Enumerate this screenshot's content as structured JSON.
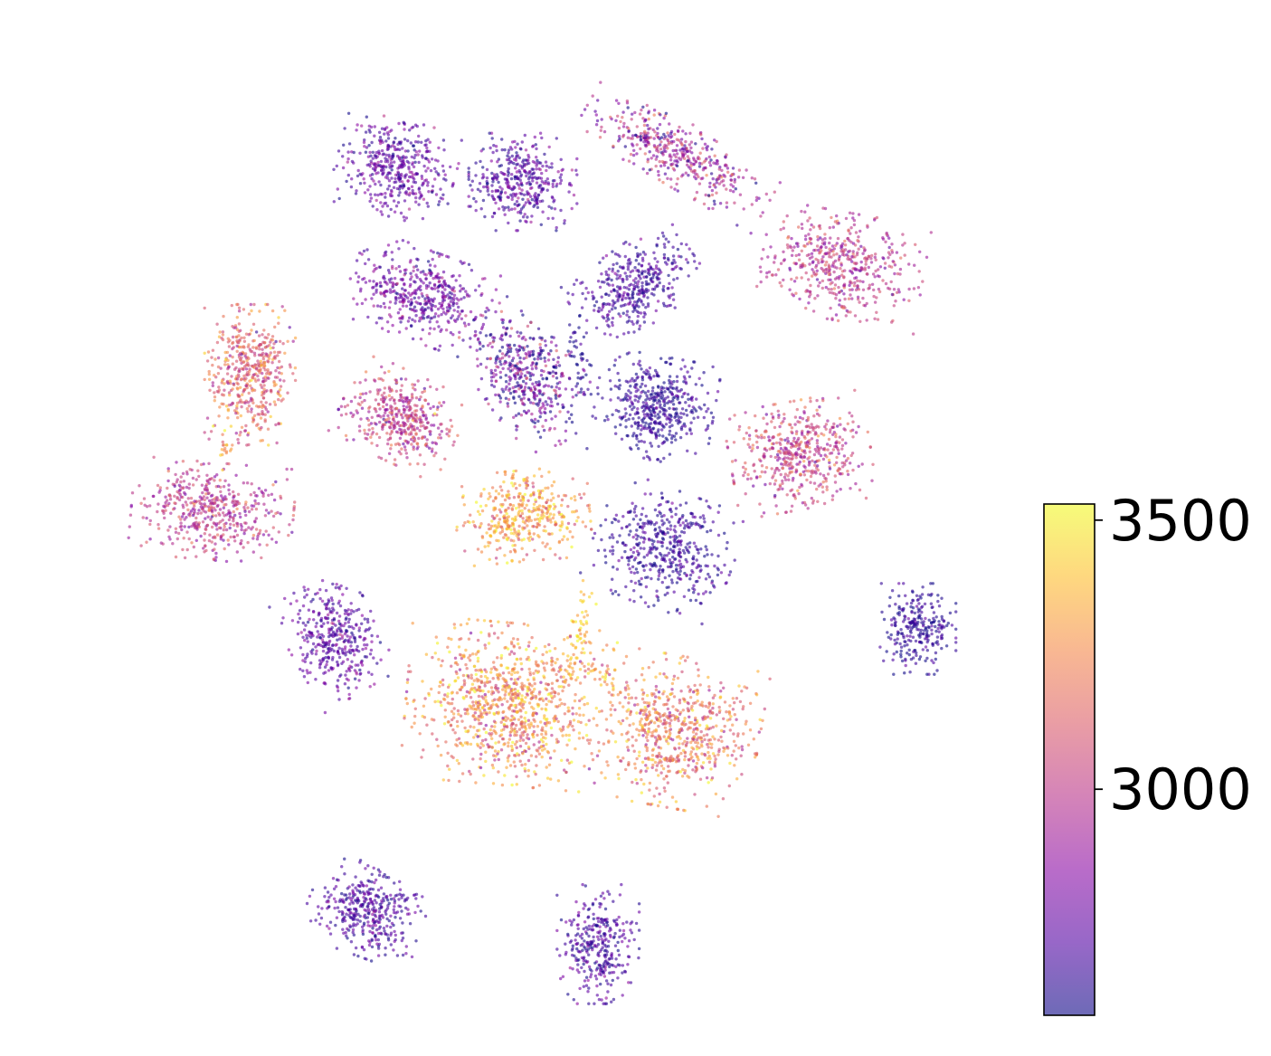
{
  "chart_data": {
    "type": "scatter",
    "title": "",
    "xlabel": "",
    "ylabel": "",
    "axes_visible": false,
    "grid": false,
    "legend": "none",
    "colormap": "plasma",
    "colormap_colors": [
      "#0d0887",
      "#5302a3",
      "#8b0aa5",
      "#b83289",
      "#db5c68",
      "#f48849",
      "#febd2a",
      "#f0f921"
    ],
    "marker_alpha": 0.6,
    "colorbar": {
      "position": "right",
      "range": [
        2580,
        3530
      ],
      "ticks": [
        {
          "value": 3000,
          "label": "3000"
        },
        {
          "value": 3500,
          "label": "3500"
        }
      ]
    },
    "xlim": [
      -10,
      10
    ],
    "ylim": [
      -10,
      10
    ],
    "clusters": [
      {
        "id": 1,
        "center": [
          -3.7,
          7.3
        ],
        "spread": [
          0.55,
          0.45
        ],
        "angle": -15,
        "n": 420,
        "mean": 2740,
        "sd": 90
      },
      {
        "id": 2,
        "center": [
          -1.0,
          7.0
        ],
        "spread": [
          0.5,
          0.45
        ],
        "angle": 0,
        "n": 380,
        "mean": 2720,
        "sd": 90
      },
      {
        "id": 3,
        "center": [
          2.3,
          7.6
        ],
        "spread": [
          0.95,
          0.3
        ],
        "angle": -30,
        "n": 420,
        "mean": 2900,
        "sd": 160
      },
      {
        "id": 4,
        "center": [
          5.8,
          5.2
        ],
        "spread": [
          0.75,
          0.5
        ],
        "angle": -10,
        "n": 480,
        "mean": 2980,
        "sd": 110
      },
      {
        "id": 5,
        "center": [
          -3.2,
          4.6
        ],
        "spread": [
          0.65,
          0.42
        ],
        "angle": -20,
        "n": 450,
        "mean": 2780,
        "sd": 90
      },
      {
        "id": 6,
        "center": [
          1.4,
          4.8
        ],
        "spread": [
          0.6,
          0.38
        ],
        "angle": 35,
        "n": 380,
        "mean": 2690,
        "sd": 70
      },
      {
        "id": 7,
        "center": [
          -0.9,
          2.9
        ],
        "spread": [
          0.45,
          0.7
        ],
        "angle": 35,
        "n": 450,
        "mean": 2760,
        "sd": 180
      },
      {
        "id": 8,
        "center": [
          -6.8,
          2.9
        ],
        "spread": [
          0.42,
          0.65
        ],
        "angle": 0,
        "n": 480,
        "mean": 3130,
        "sd": 130
      },
      {
        "id": 9,
        "center": [
          -3.6,
          2.0
        ],
        "spread": [
          0.55,
          0.42
        ],
        "angle": -25,
        "n": 420,
        "mean": 3010,
        "sd": 130
      },
      {
        "id": 10,
        "center": [
          1.8,
          2.2
        ],
        "spread": [
          0.55,
          0.48
        ],
        "angle": -10,
        "n": 460,
        "mean": 2640,
        "sd": 60
      },
      {
        "id": 11,
        "center": [
          4.9,
          1.2
        ],
        "spread": [
          0.65,
          0.5
        ],
        "angle": 10,
        "n": 500,
        "mean": 3020,
        "sd": 110
      },
      {
        "id": 12,
        "center": [
          -7.6,
          0.0
        ],
        "spread": [
          0.75,
          0.45
        ],
        "angle": -5,
        "n": 480,
        "mean": 2990,
        "sd": 110
      },
      {
        "id": 13,
        "center": [
          -1.0,
          -0.1
        ],
        "spread": [
          0.62,
          0.42
        ],
        "angle": 5,
        "n": 420,
        "mean": 3280,
        "sd": 130
      },
      {
        "id": 14,
        "center": [
          2.0,
          -0.8
        ],
        "spread": [
          0.65,
          0.55
        ],
        "angle": -20,
        "n": 460,
        "mean": 2660,
        "sd": 70
      },
      {
        "id": 15,
        "center": [
          7.4,
          -2.5
        ],
        "spread": [
          0.35,
          0.42
        ],
        "angle": 0,
        "n": 260,
        "mean": 2640,
        "sd": 60
      },
      {
        "id": 16,
        "center": [
          -5.0,
          -2.7
        ],
        "spread": [
          0.42,
          0.55
        ],
        "angle": 30,
        "n": 380,
        "mean": 2740,
        "sd": 90
      },
      {
        "id": 17,
        "center": [
          -1.3,
          -4.1
        ],
        "spread": [
          0.95,
          0.75
        ],
        "angle": -5,
        "n": 950,
        "mean": 3250,
        "sd": 150
      },
      {
        "id": 18,
        "center": [
          2.3,
          -4.7
        ],
        "spread": [
          0.75,
          0.7
        ],
        "angle": -10,
        "n": 650,
        "mean": 3200,
        "sd": 150
      },
      {
        "id": 19,
        "center": [
          -4.3,
          -8.5
        ],
        "spread": [
          0.55,
          0.42
        ],
        "angle": -20,
        "n": 380,
        "mean": 2700,
        "sd": 80
      },
      {
        "id": 20,
        "center": [
          0.6,
          -9.2
        ],
        "spread": [
          0.38,
          0.55
        ],
        "angle": 0,
        "n": 320,
        "mean": 2700,
        "sd": 80
      }
    ],
    "bridges": [
      {
        "from": [
          0.1,
          3.9
        ],
        "to": [
          0.3,
          2.4
        ],
        "n": 40,
        "mean": 2620,
        "sd": 60
      },
      {
        "from": [
          0.4,
          -1.7
        ],
        "to": [
          0.0,
          -3.5
        ],
        "n": 70,
        "mean": 3400,
        "sd": 80
      },
      {
        "from": [
          0.3,
          -3.2
        ],
        "to": [
          1.4,
          -4.1
        ],
        "n": 40,
        "mean": 3250,
        "sd": 120
      },
      {
        "from": [
          -7.5,
          1.7
        ],
        "to": [
          -7.3,
          0.9
        ],
        "n": 20,
        "mean": 3300,
        "sd": 120
      }
    ]
  }
}
